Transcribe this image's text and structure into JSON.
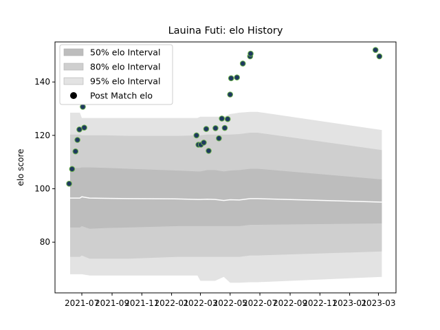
{
  "chart_data": {
    "type": "scatter",
    "title": "Lauina Futi: elo History",
    "xlabel": "",
    "ylabel": "elo score",
    "xlim": [
      "2021-05-07",
      "2023-04-06"
    ],
    "ylim": [
      61,
      155
    ],
    "x_ticks": [
      "2021-07",
      "2021-09",
      "2021-11",
      "2022-01",
      "2022-03",
      "2022-05",
      "2022-07",
      "2022-09",
      "2022-11",
      "2023-01",
      "2023-03"
    ],
    "y_ticks": [
      80,
      100,
      120,
      140
    ],
    "grid": false,
    "legend": {
      "placement": "top-left",
      "entries": [
        "50% elo Interval",
        "80% elo Interval",
        "95% elo Interval",
        "Post Match elo"
      ]
    },
    "colors": {
      "band50": "#bdbdbd",
      "band80": "#cfcfcf",
      "band95": "#e3e3e3",
      "mean_line": "#ffffff",
      "point_fill": "#1f3a5f",
      "point_edge": "#6ab04c"
    },
    "bands": {
      "x": [
        "2021-06-07",
        "2021-06-27",
        "2021-07-01",
        "2021-07-17",
        "2021-08-21",
        "2021-10-05",
        "2022-01-15",
        "2022-02-23",
        "2022-03-01",
        "2022-03-15",
        "2022-03-31",
        "2022-04-18",
        "2022-05-01",
        "2022-05-20",
        "2022-06-11",
        "2022-06-26",
        "2023-03-08"
      ],
      "mean": [
        96.5,
        96.5,
        97.0,
        96.5,
        96.4,
        96.3,
        96.2,
        96.0,
        96.0,
        96.1,
        96.0,
        95.6,
        95.9,
        95.8,
        96.3,
        96.3,
        95.0
      ],
      "p50_low": [
        85.5,
        85.5,
        86.0,
        85.0,
        85.3,
        85.5,
        86.0,
        86.0,
        86.0,
        86.0,
        86.0,
        86.0,
        86.0,
        86.0,
        86.5,
        86.5,
        87.0
      ],
      "p50_high": [
        107.8,
        107.8,
        108.0,
        108.0,
        107.8,
        107.5,
        106.8,
        106.5,
        106.5,
        107.0,
        107.0,
        106.5,
        106.8,
        107.0,
        107.5,
        107.5,
        103.5
      ],
      "p80_low": [
        74.5,
        74.5,
        75.0,
        73.8,
        73.8,
        73.8,
        74.5,
        74.5,
        74.5,
        74.5,
        74.5,
        74.5,
        74.5,
        74.5,
        75.0,
        75.0,
        76.5
      ],
      "p80_high": [
        120.3,
        120.3,
        120.0,
        120.0,
        120.0,
        119.8,
        119.8,
        120.0,
        120.0,
        120.3,
        120.3,
        120.3,
        120.3,
        120.5,
        121.0,
        121.0,
        114.5
      ],
      "p95_low": [
        68.0,
        68.0,
        68.0,
        67.5,
        67.5,
        67.5,
        67.5,
        67.5,
        65.5,
        65.5,
        65.5,
        67.0,
        64.8,
        64.8,
        65.0,
        65.0,
        67.0
      ],
      "p95_high": [
        128.5,
        128.5,
        126.5,
        126.5,
        126.5,
        126.5,
        126.5,
        126.5,
        127.0,
        127.0,
        127.0,
        127.0,
        128.0,
        128.5,
        128.8,
        128.8,
        122.0
      ]
    },
    "points": [
      {
        "x": "2021-06-05",
        "y": 101.9
      },
      {
        "x": "2021-06-11",
        "y": 107.4
      },
      {
        "x": "2021-06-18",
        "y": 114.0
      },
      {
        "x": "2021-06-22",
        "y": 118.3
      },
      {
        "x": "2021-06-26",
        "y": 122.2
      },
      {
        "x": "2021-07-03",
        "y": 130.7
      },
      {
        "x": "2021-07-06",
        "y": 122.9
      },
      {
        "x": "2022-02-21",
        "y": 120.0
      },
      {
        "x": "2022-02-25",
        "y": 116.5
      },
      {
        "x": "2022-03-02",
        "y": 116.5
      },
      {
        "x": "2022-03-08",
        "y": 117.3
      },
      {
        "x": "2022-03-13",
        "y": 122.4
      },
      {
        "x": "2022-03-18",
        "y": 114.2
      },
      {
        "x": "2022-04-01",
        "y": 122.7
      },
      {
        "x": "2022-04-08",
        "y": 118.9
      },
      {
        "x": "2022-04-14",
        "y": 126.3
      },
      {
        "x": "2022-04-20",
        "y": 122.8
      },
      {
        "x": "2022-04-26",
        "y": 126.1
      },
      {
        "x": "2022-05-01",
        "y": 135.3
      },
      {
        "x": "2022-05-03",
        "y": 141.4
      },
      {
        "x": "2022-05-15",
        "y": 141.7
      },
      {
        "x": "2022-05-27",
        "y": 146.9
      },
      {
        "x": "2022-06-11",
        "y": 149.6
      },
      {
        "x": "2022-06-12",
        "y": 150.6
      },
      {
        "x": "2023-02-23",
        "y": 152.0
      },
      {
        "x": "2023-03-03",
        "y": 149.6
      }
    ]
  }
}
